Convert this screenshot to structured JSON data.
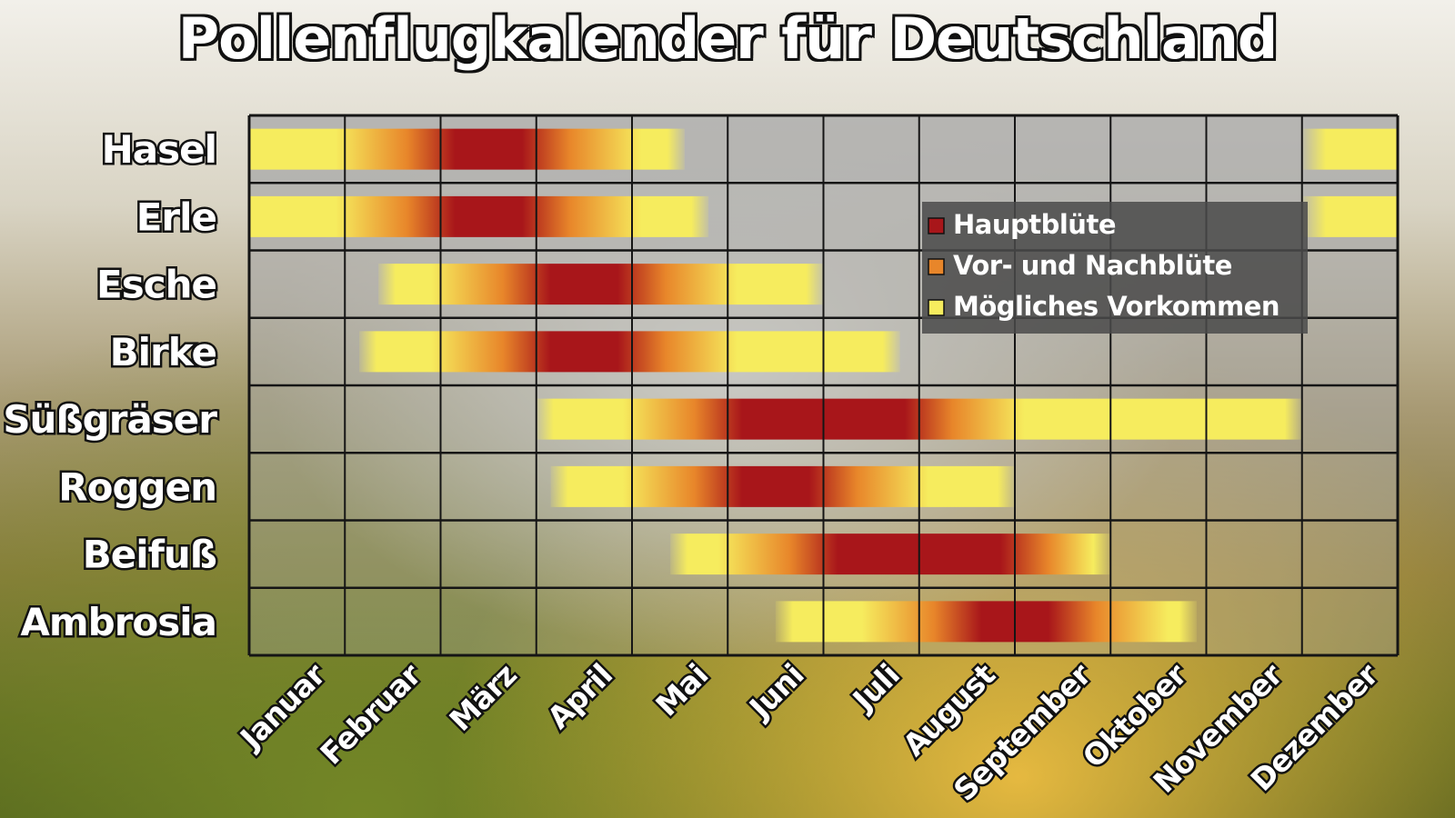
{
  "title": "Pollenflugkalender für Deutschland",
  "chart_data": {
    "type": "heatmap",
    "title": "Pollenflugkalender für Deutschland",
    "months": [
      "Januar",
      "Februar",
      "März",
      "April",
      "Mai",
      "Juni",
      "Juli",
      "August",
      "September",
      "Oktober",
      "November",
      "Dezember"
    ],
    "levels": {
      "haupt": {
        "label": "Hauptblüte",
        "color": "#a8161a"
      },
      "vornach": {
        "label": "Vor- und Nachblüte",
        "color": "#e8862a"
      },
      "moeglich": {
        "label": "Mögliches Vorkommen",
        "color": "#f6ec5e"
      }
    },
    "legend_position": "upper-right",
    "series": [
      {
        "name": "Hasel",
        "start_month": 0.0,
        "end_month": 4.55,
        "peak_start_month": 2.0,
        "peak_end_month": 3.0,
        "start_month_2": 11.0,
        "end_month_2": 12.0
      },
      {
        "name": "Erle",
        "start_month": 0.0,
        "end_month": 4.8,
        "peak_start_month": 2.0,
        "peak_end_month": 3.0,
        "start_month_2": 11.0,
        "end_month_2": 12.0
      },
      {
        "name": "Esche",
        "start_month": 1.35,
        "end_month": 6.0,
        "peak_start_month": 3.0,
        "peak_end_month": 4.0
      },
      {
        "name": "Birke",
        "start_month": 1.15,
        "end_month": 6.8,
        "peak_start_month": 3.0,
        "peak_end_month": 4.0
      },
      {
        "name": "Süßgräser",
        "start_month": 3.0,
        "end_month": 11.0,
        "peak_start_month": 5.0,
        "peak_end_month": 7.0
      },
      {
        "name": "Roggen",
        "start_month": 3.15,
        "end_month": 8.0,
        "peak_start_month": 5.0,
        "peak_end_month": 6.0
      },
      {
        "name": "Beifuß",
        "start_month": 4.4,
        "end_month": 9.0,
        "peak_start_month": 6.0,
        "peak_end_month": 8.0
      },
      {
        "name": "Ambrosia",
        "start_month": 5.5,
        "end_month": 9.9,
        "peak_start_month": 7.5,
        "peak_end_month": 8.5
      }
    ]
  }
}
